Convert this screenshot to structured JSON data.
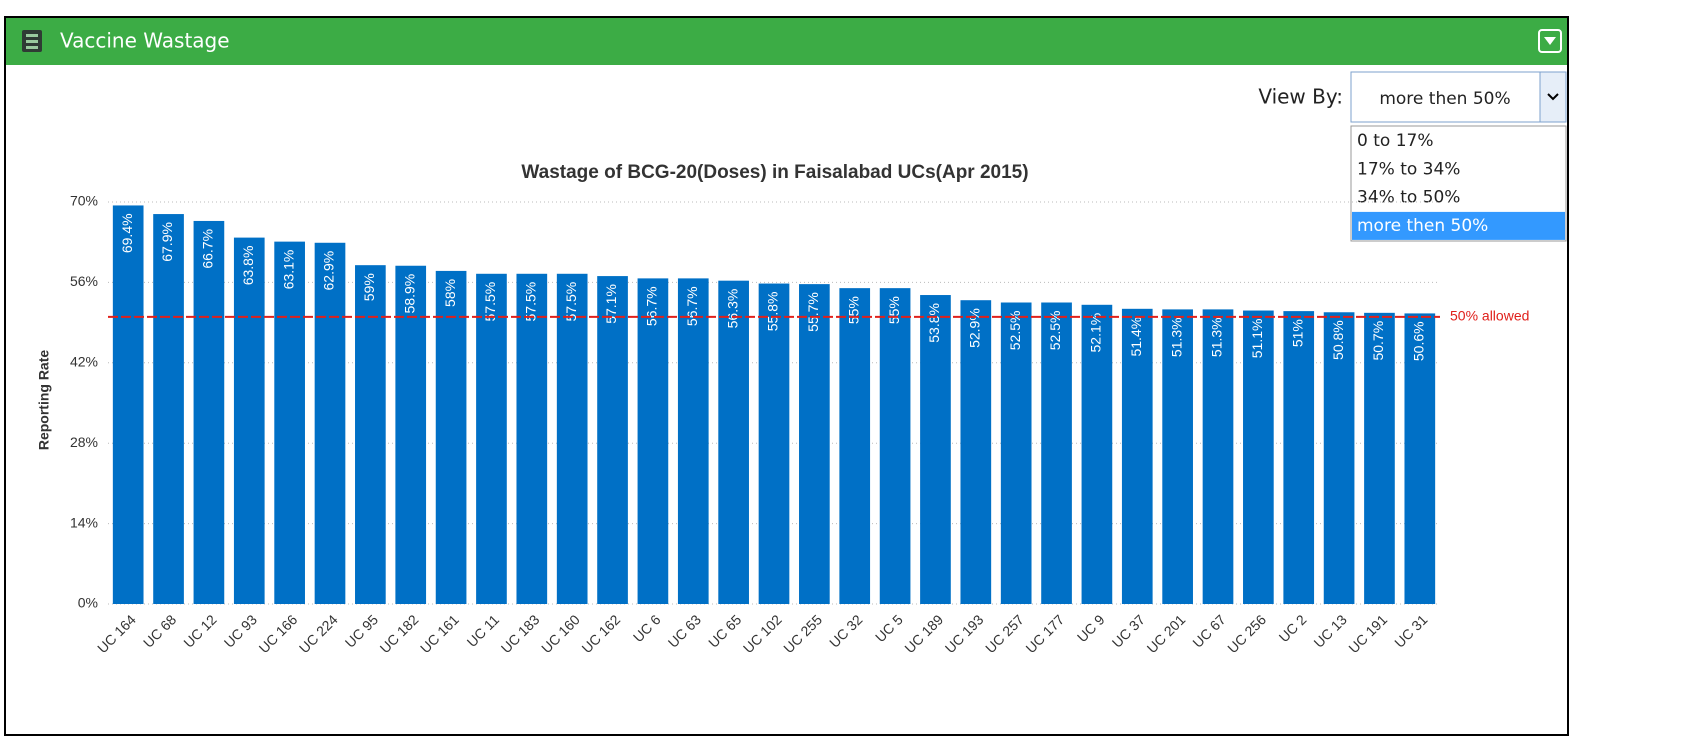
{
  "header": {
    "title": "Vaccine Wastage"
  },
  "filter": {
    "label": "View By:",
    "selected": "more then 50%",
    "options": [
      "0 to 17%",
      "17% to 34%",
      "34% to 50%",
      "more then 50%"
    ]
  },
  "chart_data": {
    "type": "bar",
    "title": "Wastage of BCG-20(Doses) in Faisalabad UCs(Apr 2015)",
    "y_label": "Reporting Rate",
    "color": "#0070c6",
    "grid": true,
    "categories": [
      "UC 164",
      "UC 68",
      "UC 12",
      "UC 93",
      "UC 166",
      "UC 224",
      "UC 95",
      "UC 182",
      "UC 161",
      "UC 11",
      "UC 183",
      "UC 160",
      "UC 162",
      "UC 6",
      "UC 63",
      "UC 65",
      "UC 102",
      "UC 255",
      "UC 32",
      "UC 5",
      "UC 189",
      "UC 193",
      "UC 257",
      "UC 177",
      "UC 9",
      "UC 37",
      "UC 201",
      "UC 67",
      "UC 256",
      "UC 2",
      "UC 13",
      "UC 191",
      "UC 31"
    ],
    "values": [
      69.4,
      67.9,
      66.7,
      63.8,
      63.1,
      62.9,
      59,
      58.9,
      58,
      57.5,
      57.5,
      57.5,
      57.1,
      56.7,
      56.7,
      56.3,
      55.8,
      55.7,
      55,
      55,
      53.8,
      52.9,
      52.5,
      52.5,
      52.1,
      51.4,
      51.3,
      51.3,
      51.1,
      51,
      50.8,
      50.7,
      50.6
    ],
    "value_labels": [
      "69.4%",
      "67.9%",
      "66.7%",
      "63.8%",
      "63.1%",
      "62.9%",
      "59%",
      "58.9%",
      "58%",
      "57.5%",
      "57.5%",
      "57.5%",
      "57.1%",
      "56.7%",
      "56.7%",
      "56.3%",
      "55.8%",
      "55.7%",
      "55%",
      "55%",
      "53.8%",
      "52.9%",
      "52.5%",
      "52.5%",
      "52.1%",
      "51.4%",
      "51.3%",
      "51.3%",
      "51.1%",
      "51%",
      "50.8%",
      "50.7%",
      "50.6%"
    ],
    "ylim": [
      0,
      70
    ],
    "yticks": [
      {
        "value": 0,
        "label": "0%"
      },
      {
        "value": 14,
        "label": "14%"
      },
      {
        "value": 28,
        "label": "28%"
      },
      {
        "value": 42,
        "label": "42%"
      },
      {
        "value": 56,
        "label": "56%"
      },
      {
        "value": 70,
        "label": "70%"
      }
    ],
    "threshold": {
      "value": 50,
      "label": "50% allowed",
      "color": "#e0201b"
    }
  }
}
